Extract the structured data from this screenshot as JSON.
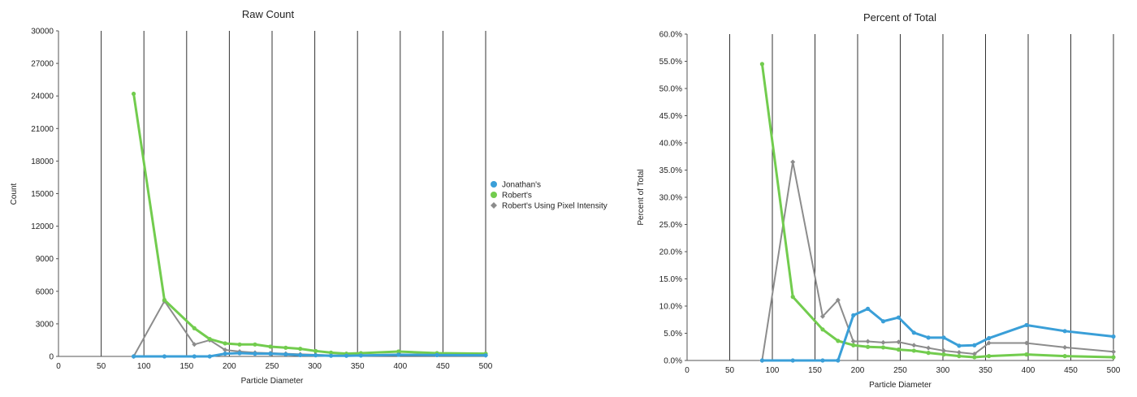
{
  "colors": {
    "jonathan": "#3a9fd8",
    "robert": "#72cc4e",
    "robert_pixel": "#8c8c8c",
    "grid": "#333333",
    "axis": "#555555"
  },
  "legend": {
    "placement": "center-between-charts",
    "items": [
      {
        "label": "Jonathan's",
        "color_key": "jonathan",
        "icon": "circle-marker-icon"
      },
      {
        "label": "Robert's",
        "color_key": "robert",
        "icon": "circle-marker-icon"
      },
      {
        "label": "Robert's Using Pixel Intensity",
        "color_key": "robert_pixel",
        "icon": "diamond-marker-icon"
      }
    ]
  },
  "chart_data": [
    {
      "type": "line",
      "title": "Raw Count",
      "xlabel": "Particle Diameter",
      "ylabel": "Count",
      "xlim": [
        0,
        500
      ],
      "ylim": [
        0,
        30000
      ],
      "xticks": [
        0,
        50,
        100,
        150,
        200,
        250,
        300,
        350,
        400,
        450,
        500
      ],
      "yticks": [
        0,
        3000,
        6000,
        9000,
        12000,
        15000,
        18000,
        21000,
        24000,
        27000,
        30000
      ],
      "ytick_labels": [
        "0",
        "3000",
        "6000",
        "9000",
        "12000",
        "15000",
        "18000",
        "21000",
        "24000",
        "27000",
        "30000"
      ],
      "grid": "vertical",
      "series": [
        {
          "name": "Jonathan's",
          "color_key": "jonathan",
          "marker": "circle",
          "x": [
            88,
            124,
            159,
            177,
            195,
            212,
            230,
            248,
            266,
            283,
            301,
            319,
            337,
            354,
            398,
            443,
            500
          ],
          "y": [
            0,
            0,
            0,
            0,
            250,
            300,
            250,
            250,
            200,
            120,
            100,
            60,
            60,
            80,
            150,
            120,
            100
          ]
        },
        {
          "name": "Robert's",
          "color_key": "robert",
          "marker": "circle",
          "x": [
            88,
            124,
            159,
            177,
            195,
            212,
            230,
            248,
            266,
            283,
            301,
            319,
            337,
            354,
            398,
            443,
            500
          ],
          "y": [
            24200,
            5200,
            2600,
            1600,
            1200,
            1100,
            1100,
            900,
            800,
            700,
            500,
            350,
            250,
            300,
            450,
            300,
            250
          ]
        },
        {
          "name": "Robert's Using Pixel Intensity",
          "color_key": "robert_pixel",
          "marker": "diamond",
          "x": [
            88,
            124,
            159,
            177,
            195,
            212,
            230,
            248,
            266,
            283,
            301,
            319,
            337,
            354,
            398,
            443,
            500
          ],
          "y": [
            0,
            5100,
            1100,
            1500,
            600,
            450,
            350,
            300,
            250,
            200,
            150,
            100,
            80,
            100,
            200,
            150,
            100
          ]
        }
      ]
    },
    {
      "type": "line",
      "title": "Percent of Total",
      "xlabel": "Particle Diameter",
      "ylabel": "Percent of Total",
      "xlim": [
        0,
        500
      ],
      "ylim": [
        0,
        60
      ],
      "xticks": [
        0,
        50,
        100,
        150,
        200,
        250,
        300,
        350,
        400,
        450,
        500
      ],
      "yticks": [
        0,
        5,
        10,
        15,
        20,
        25,
        30,
        35,
        40,
        45,
        50,
        55,
        60
      ],
      "ytick_labels": [
        "0.0%",
        "5.0%",
        "10.0%",
        "15.0%",
        "20.0%",
        "25.0%",
        "30.0%",
        "35.0%",
        "40.0%",
        "45.0%",
        "50.0%",
        "55.0%",
        "60.0%"
      ],
      "grid": "vertical",
      "series": [
        {
          "name": "Jonathan's",
          "color_key": "jonathan",
          "marker": "circle",
          "x": [
            88,
            124,
            159,
            177,
            195,
            212,
            230,
            248,
            266,
            283,
            301,
            319,
            337,
            354,
            398,
            443,
            500
          ],
          "y": [
            0,
            0,
            0,
            0,
            8.3,
            9.5,
            7.2,
            7.9,
            5.1,
            4.2,
            4.2,
            2.7,
            2.8,
            4.1,
            6.5,
            5.4,
            4.4
          ]
        },
        {
          "name": "Robert's",
          "color_key": "robert",
          "marker": "circle",
          "x": [
            88,
            124,
            159,
            177,
            195,
            212,
            230,
            248,
            266,
            283,
            301,
            319,
            337,
            354,
            398,
            443,
            500
          ],
          "y": [
            54.5,
            11.7,
            5.7,
            3.6,
            2.8,
            2.5,
            2.4,
            2.0,
            1.8,
            1.4,
            1.1,
            0.8,
            0.6,
            0.8,
            1.1,
            0.8,
            0.6
          ]
        },
        {
          "name": "Robert's Using Pixel Intensity",
          "color_key": "robert_pixel",
          "marker": "diamond",
          "x": [
            88,
            124,
            159,
            177,
            195,
            212,
            230,
            248,
            266,
            283,
            301,
            319,
            337,
            354,
            398,
            443,
            500
          ],
          "y": [
            0,
            36.5,
            8.1,
            11.1,
            3.5,
            3.5,
            3.3,
            3.4,
            2.8,
            2.3,
            1.8,
            1.5,
            1.2,
            3.2,
            3.2,
            2.4,
            1.6
          ]
        }
      ]
    }
  ]
}
